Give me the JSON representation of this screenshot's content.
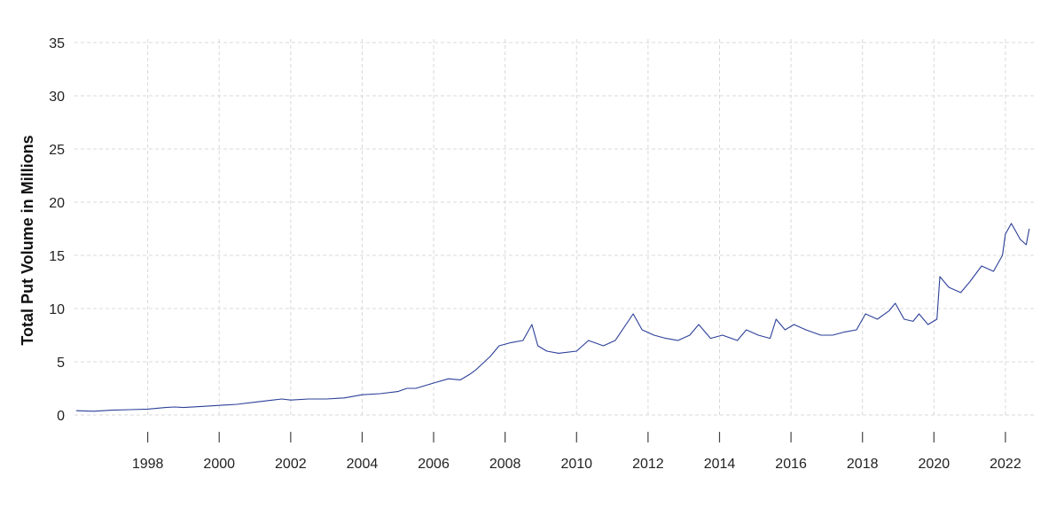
{
  "chart_data": {
    "type": "line",
    "title": "",
    "xlabel": "",
    "ylabel": "Total Put Volume in Millions",
    "x_range": [
      "1996-01-01",
      "2022-09-30"
    ],
    "ylim": [
      0,
      35
    ],
    "y_ticks": [
      0,
      5,
      10,
      15,
      20,
      25,
      30,
      35
    ],
    "x_tick_labels": [
      "1998",
      "2000",
      "2002",
      "2004",
      "2006",
      "2008",
      "2010",
      "2012",
      "2014",
      "2016",
      "2018",
      "2020",
      "2022"
    ],
    "grid": true,
    "legend": "none",
    "series_color": "#2b3f98",
    "grid_color": "#d9d9d9",
    "series": [
      {
        "x": [
          "1996-01",
          "1996-07",
          "1997-01",
          "1997-07",
          "1998-01",
          "1998-07",
          "1998-10",
          "1999-01",
          "1999-07",
          "2000-01",
          "2000-07",
          "2001-01",
          "2001-07",
          "2001-10",
          "2002-01",
          "2002-07",
          "2003-01",
          "2003-07",
          "2004-01",
          "2004-07",
          "2005-01",
          "2005-04",
          "2005-07",
          "2006-01",
          "2006-06",
          "2006-10",
          "2007-01",
          "2007-03",
          "2007-08",
          "2007-11",
          "2008-03",
          "2008-07",
          "2008-10",
          "2008-12",
          "2009-03",
          "2009-07",
          "2010-01",
          "2010-05",
          "2010-10",
          "2011-02",
          "2011-08",
          "2011-11",
          "2012-03",
          "2012-07",
          "2012-11",
          "2013-03",
          "2013-06",
          "2013-10",
          "2014-02",
          "2014-07",
          "2014-10",
          "2015-02",
          "2015-06",
          "2015-08",
          "2015-11",
          "2016-02",
          "2016-06",
          "2016-11",
          "2017-03",
          "2017-07",
          "2017-11",
          "2018-02",
          "2018-06",
          "2018-10",
          "2018-12",
          "2019-03",
          "2019-06",
          "2019-08",
          "2019-11",
          "2020-02",
          "2020-03",
          "2020-06",
          "2020-10",
          "2021-01",
          "2021-05",
          "2021-09",
          "2021-12",
          "2022-01",
          "2022-03",
          "2022-06",
          "2022-08",
          "2022-09"
        ],
        "values": [
          0.4,
          0.35,
          0.45,
          0.5,
          0.55,
          0.7,
          0.75,
          0.7,
          0.8,
          0.9,
          1.0,
          1.2,
          1.4,
          1.5,
          1.4,
          1.5,
          1.5,
          1.6,
          1.9,
          2.0,
          2.2,
          2.5,
          2.5,
          3.0,
          3.4,
          3.3,
          3.8,
          4.2,
          5.5,
          6.5,
          6.8,
          7.0,
          8.5,
          6.5,
          6.0,
          5.8,
          6.0,
          7.0,
          6.5,
          7.0,
          9.5,
          8.0,
          7.5,
          7.2,
          7.0,
          7.5,
          8.5,
          7.2,
          7.5,
          7.0,
          8.0,
          7.5,
          7.2,
          9.0,
          8.0,
          8.5,
          8.0,
          7.5,
          7.5,
          7.8,
          8.0,
          9.5,
          9.0,
          9.8,
          10.5,
          9.0,
          8.8,
          9.5,
          8.5,
          9.0,
          13.0,
          12.0,
          11.5,
          12.5,
          14.0,
          13.5,
          15.0,
          17.0,
          18.0,
          16.5,
          16.0,
          17.5
        ]
      }
    ]
  }
}
